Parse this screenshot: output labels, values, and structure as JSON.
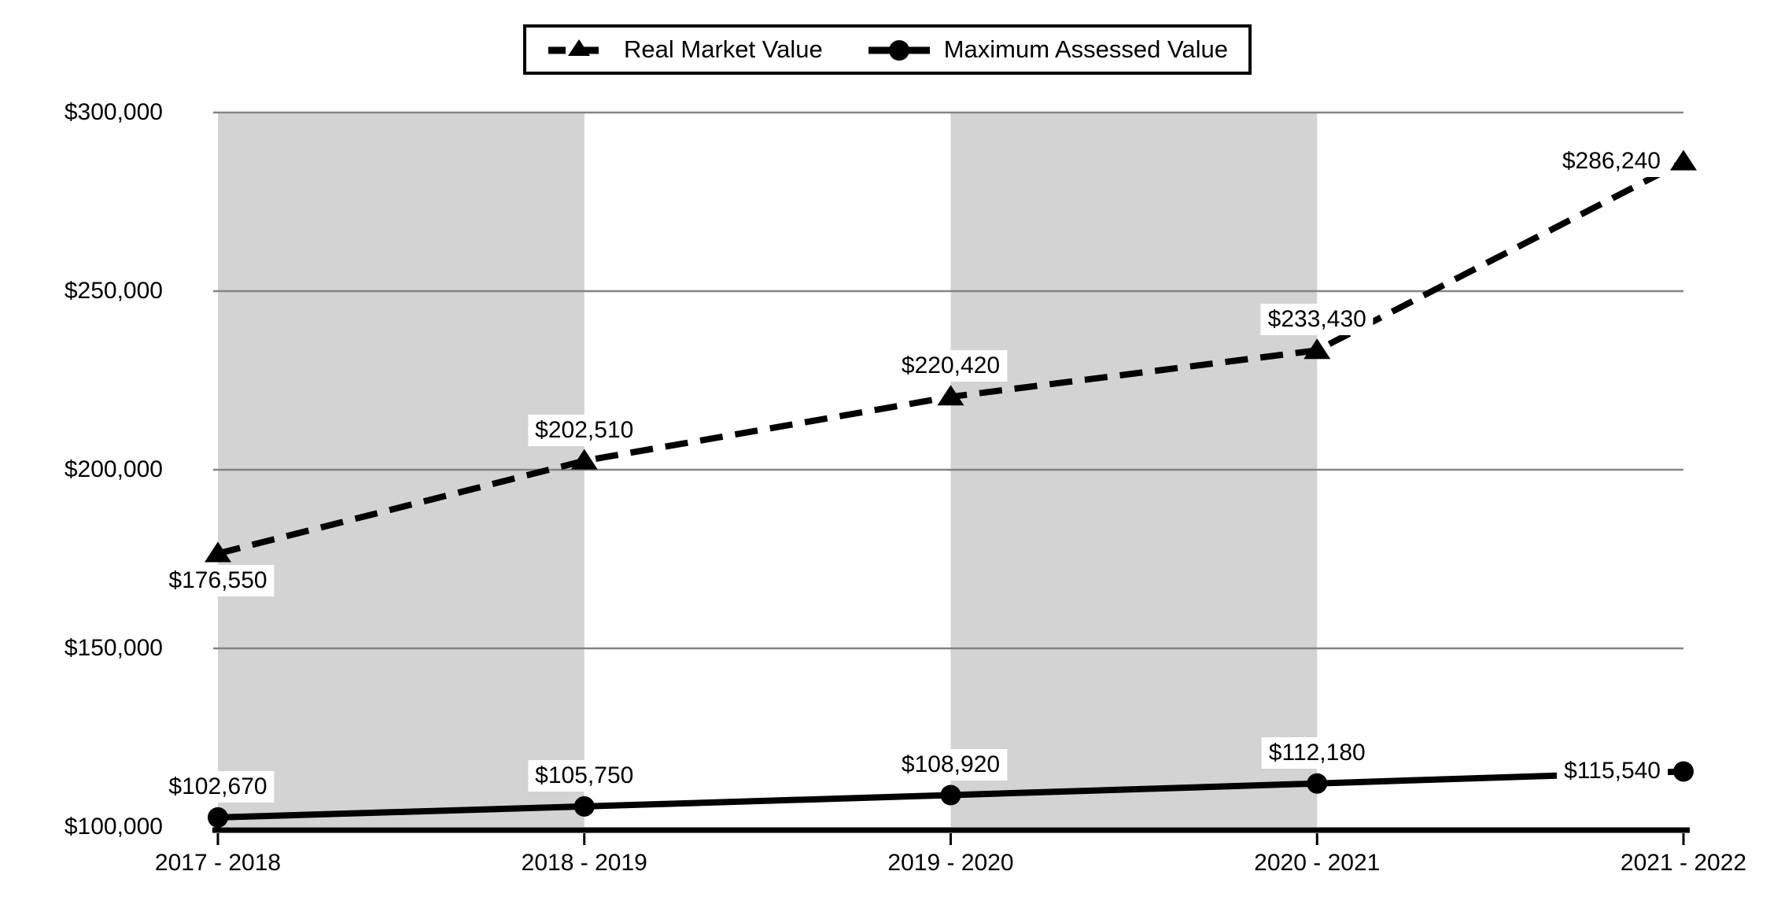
{
  "chart_data": {
    "type": "line",
    "title": "",
    "categories": [
      "2017 - 2018",
      "2018 - 2019",
      "2019 - 2020",
      "2020 - 2021",
      "2021 - 2022"
    ],
    "series": [
      {
        "name": "Real Market Value",
        "line_style": "dashed",
        "marker": "triangle",
        "values": [
          176550,
          202510,
          220420,
          233430,
          286240
        ],
        "labels": [
          "$176,550",
          "$202,510",
          "$220,420",
          "$233,430",
          "$286,240"
        ],
        "label_pos": [
          "below",
          "above",
          "above",
          "above",
          "left"
        ]
      },
      {
        "name": "Maximum Assessed Value",
        "line_style": "solid",
        "marker": "circle",
        "values": [
          102670,
          105750,
          108920,
          112180,
          115540
        ],
        "labels": [
          "$102,670",
          "$105,750",
          "$108,920",
          "$112,180",
          "$115,540"
        ],
        "label_pos": [
          "above",
          "above",
          "above",
          "above",
          "left"
        ]
      }
    ],
    "y_axis": {
      "min": 100000,
      "max": 300000,
      "step": 50000,
      "tick_labels": [
        "$100,000",
        "$150,000",
        "$200,000",
        "$250,000",
        "$300,000"
      ]
    },
    "bands": [
      [
        0,
        1
      ],
      [
        2,
        3
      ]
    ],
    "legend_position": "top-center",
    "grid": "horizontal",
    "colors": {
      "band": "#d3d3d3",
      "gridline": "#848484",
      "series": "#000000",
      "axis": "#000000",
      "label_bg": "#ffffff",
      "background": "#ffffff"
    }
  }
}
